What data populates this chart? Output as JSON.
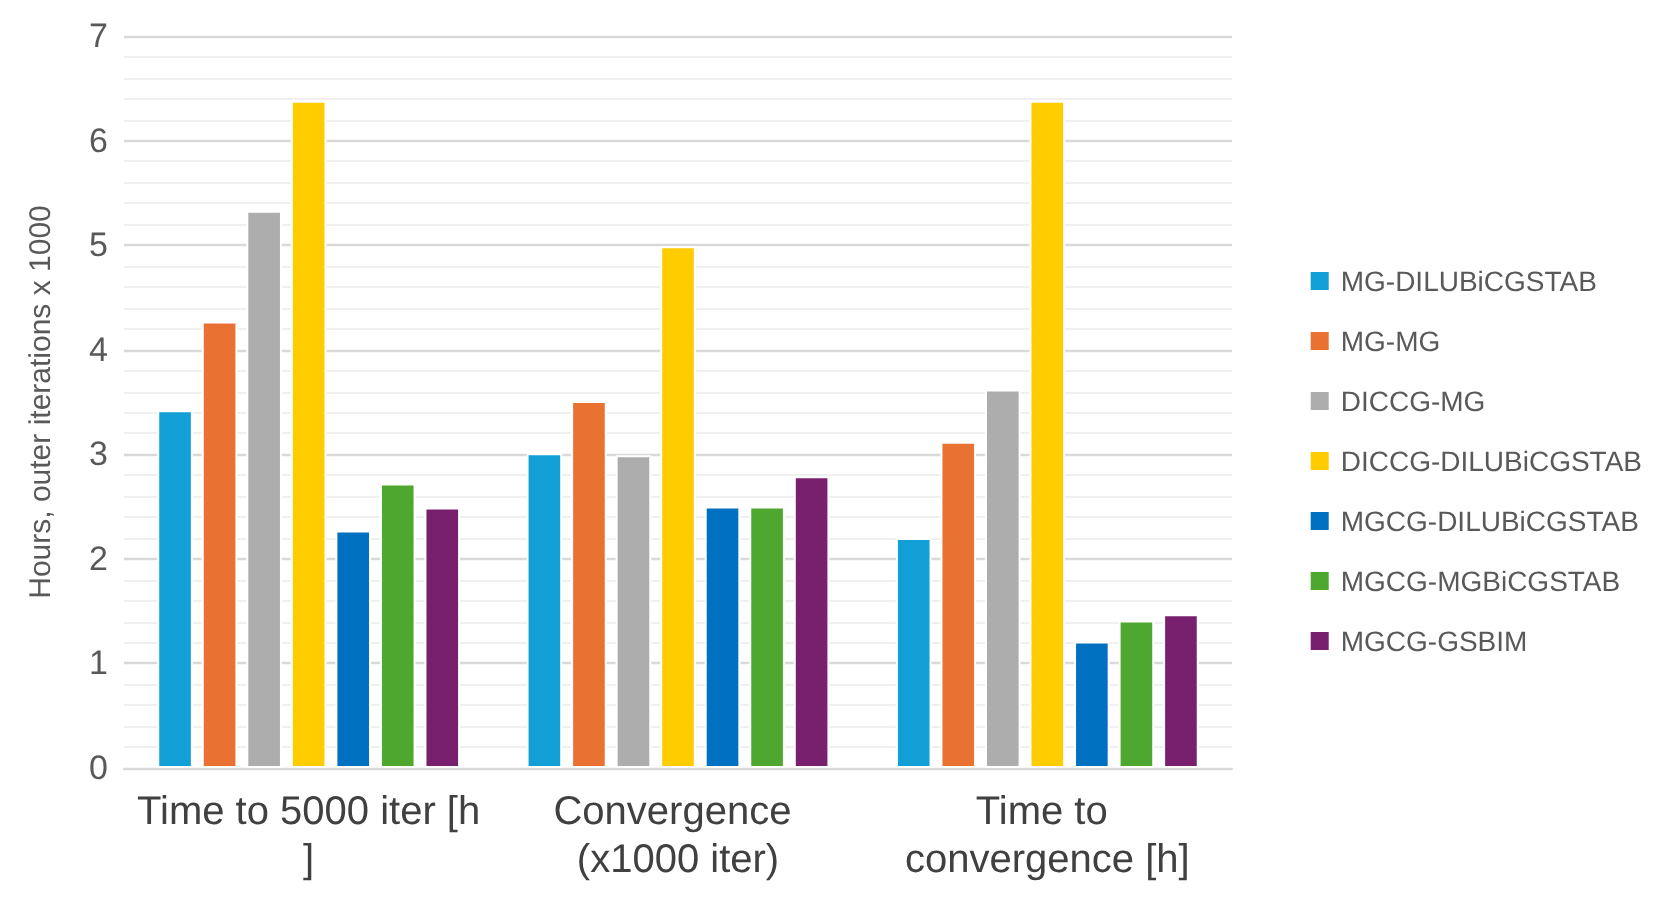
{
  "chart_data": {
    "type": "bar",
    "ylabel": "Hours, outer iterations x 1000",
    "categories": [
      "Time to 5000 iter [h]",
      "Convergence (x1000 iter)",
      "Time to convergence [h]"
    ],
    "series": [
      {
        "name": "MG-DILUBiCGSTAB",
        "color": "#129fd6",
        "values": [
          3.42,
          3.01,
          2.2
        ]
      },
      {
        "name": "MG-MG",
        "color": "#e97132",
        "values": [
          4.27,
          3.51,
          3.12
        ]
      },
      {
        "name": "DICCG-MG",
        "color": "#adadad",
        "values": [
          5.33,
          2.99,
          3.62
        ]
      },
      {
        "name": "DICCG-DILUBiCGSTAB",
        "color": "#ffcc00",
        "values": [
          6.38,
          4.99,
          6.38
        ]
      },
      {
        "name": "MGCG-DILUBiCGSTAB",
        "color": "#0070c0",
        "values": [
          2.27,
          2.5,
          1.21
        ]
      },
      {
        "name": "MGCG-MGBiCGSTAB",
        "color": "#4ea72e",
        "values": [
          2.72,
          2.5,
          1.41
        ]
      },
      {
        "name": "MGCG-GSBIM",
        "color": "#78206e",
        "values": [
          2.49,
          2.79,
          1.47
        ]
      }
    ],
    "ylim": [
      0,
      7
    ],
    "yticks": [
      0,
      1,
      2,
      3,
      4,
      5,
      6,
      7
    ],
    "grid": "y",
    "legend": "right"
  }
}
